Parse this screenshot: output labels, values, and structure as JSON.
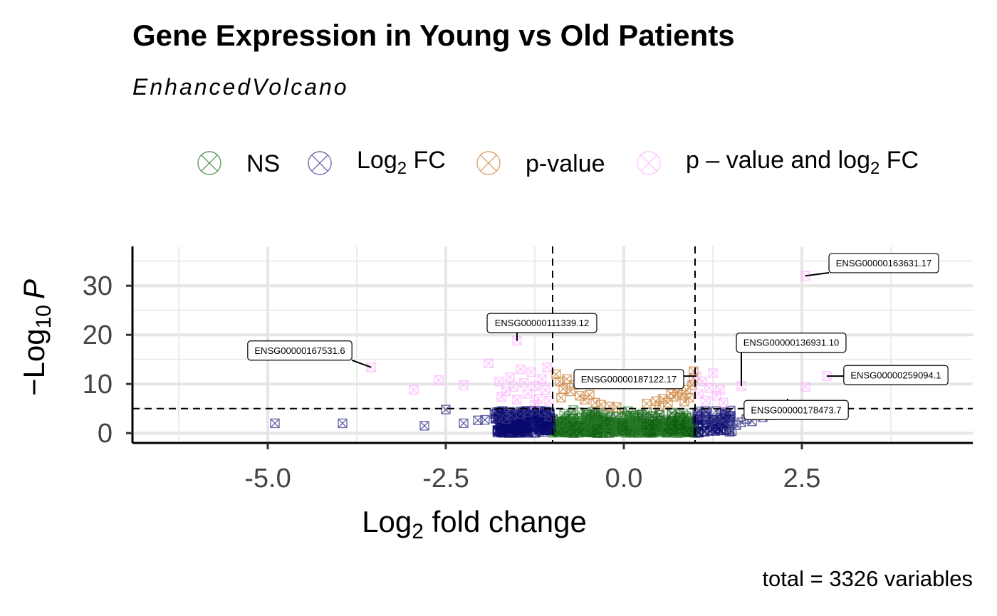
{
  "chart_data": {
    "type": "scatter",
    "title": "Gene Expression in Young vs Old Patients",
    "subtitle": "EnhancedVolcano",
    "caption": "total = 3326 variables",
    "xlabel": {
      "base": "Log",
      "sub": "2",
      "rest": " fold change"
    },
    "ylabel": {
      "prefix": "−Log",
      "sub": "10",
      "var": "P"
    },
    "xlim": [
      -6.9,
      4.9
    ],
    "ylim": [
      -2,
      38
    ],
    "x_ticks": [
      {
        "value": -5.0,
        "label": "-5.0"
      },
      {
        "value": -2.5,
        "label": "-2.5"
      },
      {
        "value": 0.0,
        "label": "0.0"
      },
      {
        "value": 2.5,
        "label": "2.5"
      }
    ],
    "y_ticks": [
      {
        "value": 0,
        "label": "0"
      },
      {
        "value": 10,
        "label": "10"
      },
      {
        "value": 20,
        "label": "20"
      },
      {
        "value": 30,
        "label": "30"
      }
    ],
    "grid": true,
    "fc_cutoff": 1.0,
    "p_cutoff_neglog10": 5,
    "legend": {
      "position": "top",
      "items": [
        {
          "key": "ns",
          "parts": [
            {
              "t": "NS"
            }
          ]
        },
        {
          "key": "fc",
          "parts": [
            {
              "t": "Log"
            },
            {
              "t": "2",
              "sub": true
            },
            {
              "t": " FC"
            }
          ]
        },
        {
          "key": "p",
          "parts": [
            {
              "t": "p-value"
            }
          ]
        },
        {
          "key": "both",
          "parts": [
            {
              "t": "p – value and log"
            },
            {
              "t": "2",
              "sub": true
            },
            {
              "t": " FC"
            }
          ]
        }
      ]
    },
    "colors": {
      "ns": "#2a7a2a",
      "ns_dense": "#0b5c0b",
      "fc": "#3b3b8f",
      "fc_dense": "#0a0a6e",
      "p": "#cd853f",
      "both": "#ffb3ff"
    },
    "series": [
      {
        "key": "fc",
        "points": [
          [
            -4.9,
            2.0
          ],
          [
            -3.95,
            2.0
          ],
          [
            -2.8,
            1.5
          ],
          [
            -2.5,
            4.8
          ],
          [
            -2.25,
            2.0
          ],
          [
            -2.05,
            2.6
          ],
          [
            -1.95,
            2.7
          ],
          [
            -1.8,
            3.1
          ],
          [
            -1.65,
            2.9
          ],
          [
            -1.58,
            3.6
          ],
          [
            -1.45,
            3.9
          ],
          [
            -1.35,
            4.3
          ],
          [
            -1.25,
            4.6
          ],
          [
            -1.12,
            4.2
          ],
          [
            -1.05,
            3.4
          ],
          [
            1.05,
            3.6
          ],
          [
            1.12,
            4.0
          ],
          [
            1.2,
            2.6
          ],
          [
            1.28,
            2.2
          ],
          [
            1.35,
            3.1
          ],
          [
            1.42,
            1.8
          ],
          [
            1.5,
            2.4
          ],
          [
            1.58,
            1.6
          ],
          [
            1.65,
            2.2
          ],
          [
            1.72,
            2.9
          ],
          [
            1.8,
            2.4
          ],
          [
            1.95,
            3.2
          ],
          [
            2.05,
            3.6
          ],
          [
            2.2,
            4.3
          ],
          [
            1.5,
            4.6
          ]
        ]
      },
      {
        "key": "p",
        "points": [
          [
            -0.95,
            12.0
          ],
          [
            -0.9,
            10.5
          ],
          [
            -0.85,
            9.0
          ],
          [
            -0.8,
            11.0
          ],
          [
            -0.75,
            8.5
          ],
          [
            -0.7,
            9.8
          ],
          [
            -0.62,
            7.6
          ],
          [
            -0.55,
            6.8
          ],
          [
            -0.48,
            7.8
          ],
          [
            -0.4,
            6.2
          ],
          [
            -0.32,
            5.8
          ],
          [
            -0.2,
            5.4
          ],
          [
            -0.1,
            5.3
          ],
          [
            -0.6,
            10.0
          ],
          [
            -0.88,
            7.2
          ],
          [
            0.32,
            6.0
          ],
          [
            0.45,
            6.5
          ],
          [
            0.55,
            7.0
          ],
          [
            0.62,
            6.2
          ],
          [
            0.7,
            7.4
          ],
          [
            0.75,
            8.4
          ],
          [
            0.82,
            7.8
          ],
          [
            0.88,
            8.8
          ],
          [
            0.92,
            7.2
          ],
          [
            0.96,
            9.8
          ],
          [
            0.98,
            12.6
          ],
          [
            0.98,
            11.2
          ],
          [
            0.5,
            5.6
          ],
          [
            0.85,
            6.4
          ],
          [
            0.66,
            8.0
          ]
        ]
      },
      {
        "key": "both",
        "points": [
          [
            -3.55,
            13.4
          ],
          [
            -2.95,
            8.8
          ],
          [
            -2.6,
            10.8
          ],
          [
            -2.25,
            9.8
          ],
          [
            -1.9,
            14.2
          ],
          [
            -1.75,
            10.5
          ],
          [
            -1.65,
            8.5
          ],
          [
            -1.6,
            11.4
          ],
          [
            -1.55,
            9.4
          ],
          [
            -1.5,
            6.8
          ],
          [
            -1.45,
            13.0
          ],
          [
            -1.4,
            10.2
          ],
          [
            -1.35,
            8.0
          ],
          [
            -1.3,
            12.4
          ],
          [
            -1.25,
            9.6
          ],
          [
            -1.2,
            7.0
          ],
          [
            -1.15,
            11.0
          ],
          [
            -1.1,
            8.8
          ],
          [
            -1.08,
            13.4
          ],
          [
            -1.05,
            6.6
          ],
          [
            -1.5,
            18.8
          ],
          [
            -1.72,
            7.4
          ],
          [
            -1.25,
            5.8
          ],
          [
            1.05,
            8.0
          ],
          [
            1.1,
            10.5
          ],
          [
            1.15,
            6.6
          ],
          [
            1.2,
            9.2
          ],
          [
            1.25,
            12.2
          ],
          [
            1.3,
            7.6
          ],
          [
            1.35,
            8.8
          ],
          [
            1.02,
            11.6
          ],
          [
            1.65,
            9.6
          ],
          [
            2.55,
            9.4
          ],
          [
            2.55,
            32.0
          ],
          [
            2.85,
            11.6
          ],
          [
            1.4,
            6.2
          ]
        ]
      }
    ],
    "labels": [
      {
        "text": "ENSG00000163631.17",
        "x": 2.55,
        "y": 32.0,
        "lx": 3.65,
        "ly": 34.6
      },
      {
        "text": "ENSG00000111339.12",
        "x": -1.5,
        "y": 18.8,
        "lx": -1.15,
        "ly": 22.4
      },
      {
        "text": "ENSG00000167531.6",
        "x": -3.55,
        "y": 13.4,
        "lx": -4.55,
        "ly": 16.8
      },
      {
        "text": "ENSG00000136931.10",
        "x": 1.65,
        "y": 9.6,
        "lx": 2.35,
        "ly": 18.4
      },
      {
        "text": "ENSG00000187122.17",
        "x": 1.02,
        "y": 11.6,
        "lx": 0.07,
        "ly": 11.0
      },
      {
        "text": "ENSG00000259094.1",
        "x": 2.85,
        "y": 11.6,
        "lx": 3.82,
        "ly": 11.8
      },
      {
        "text": "ENSG00000178473.7",
        "x": 2.3,
        "y": 7.0,
        "lx": 2.42,
        "ly": 4.7
      }
    ]
  }
}
